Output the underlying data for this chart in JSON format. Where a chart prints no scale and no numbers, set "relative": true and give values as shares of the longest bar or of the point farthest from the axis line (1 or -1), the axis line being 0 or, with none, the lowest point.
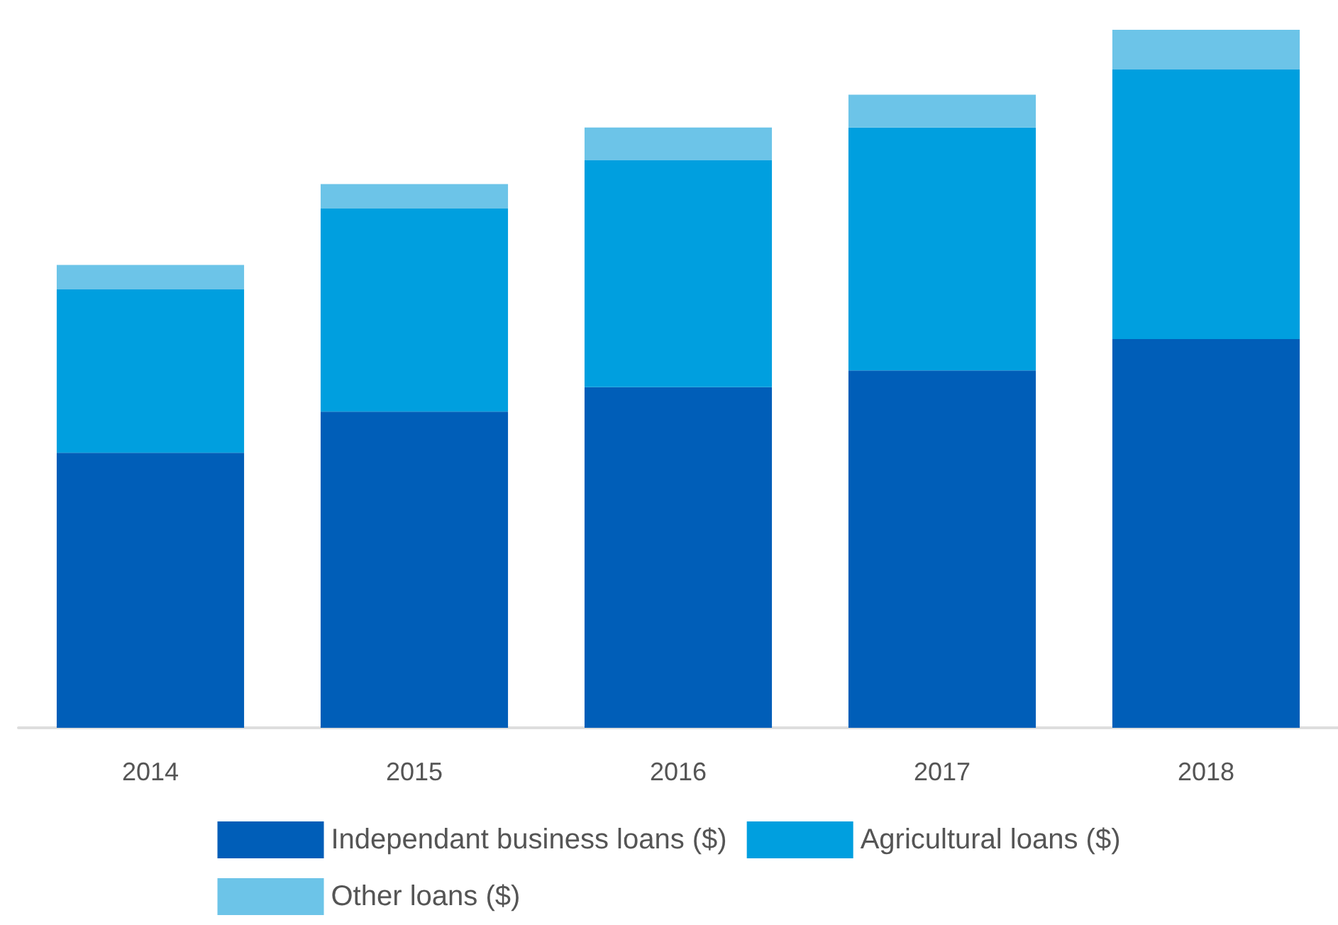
{
  "chart_data": {
    "type": "bar",
    "stacked": true,
    "relative": true,
    "categories": [
      "2014",
      "2015",
      "2016",
      "2017",
      "2018"
    ],
    "series": [
      {
        "name": "Independant business loans ($)",
        "color": "#005eb8",
        "values": [
          0.394,
          0.453,
          0.488,
          0.512,
          0.557
        ]
      },
      {
        "name": "Agricultural loans ($)",
        "color": "#009fdf",
        "values": [
          0.234,
          0.291,
          0.325,
          0.348,
          0.386
        ]
      },
      {
        "name": "Other loans ($)",
        "color": "#6cc4e8",
        "values": [
          0.035,
          0.035,
          0.047,
          0.047,
          0.057
        ]
      }
    ],
    "legend": "bottom"
  }
}
